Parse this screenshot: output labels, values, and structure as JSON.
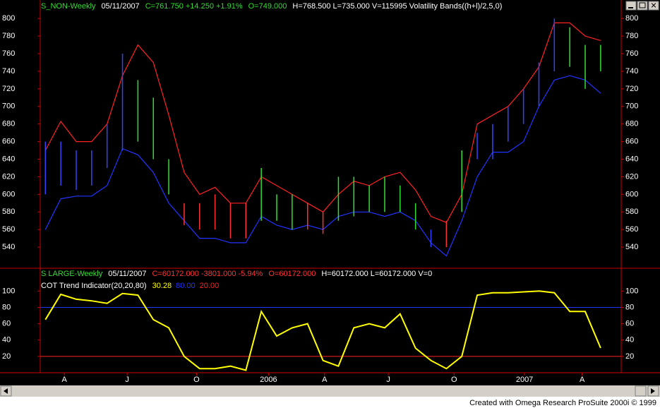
{
  "chart_data": [
    {
      "type": "ohlc",
      "legend": [
        {
          "text": "S_NON-Weekly",
          "color": "#33dd33"
        },
        {
          "text": "05/11/2007",
          "color": "#ffffff"
        },
        {
          "text": "C=761.750  +14.250  +1.91%",
          "color": "#33dd33"
        },
        {
          "text": "O=749.000",
          "color": "#33dd33"
        },
        {
          "text": "H=768.500  L=735.000  V=115995  Volatility Bands((h+l)/2,5,0)",
          "color": "#ffffff"
        }
      ],
      "x": [
        1,
        4,
        7,
        10,
        13,
        16,
        19,
        22,
        25,
        28,
        31,
        34,
        37,
        40,
        43,
        46,
        49,
        52,
        55,
        58,
        61,
        64,
        67,
        70,
        73,
        76,
        79,
        82,
        85,
        88,
        91,
        94,
        97,
        100,
        103,
        106,
        109
      ],
      "high": [
        660,
        660,
        650,
        650,
        680,
        760,
        730,
        710,
        640,
        590,
        590,
        600,
        590,
        590,
        630,
        600,
        600,
        590,
        580,
        620,
        620,
        610,
        620,
        610,
        590,
        560,
        570,
        650,
        670,
        680,
        700,
        720,
        750,
        800,
        790,
        770,
        770
      ],
      "low": [
        600,
        610,
        605,
        610,
        630,
        650,
        660,
        640,
        600,
        565,
        560,
        560,
        550,
        550,
        570,
        570,
        560,
        560,
        555,
        570,
        575,
        580,
        580,
        580,
        560,
        540,
        540,
        580,
        640,
        640,
        660,
        680,
        700,
        740,
        745,
        720,
        740
      ],
      "bar_colors": [
        "#3344ff",
        "#3344ff",
        "#3344ff",
        "#3344ff",
        "#3344ff",
        "#3344ff",
        "#33dd33",
        "#33dd33",
        "#33dd33",
        "#ff3333",
        "#ff3333",
        "#ff3333",
        "#ff3333",
        "#ff3333",
        "#33dd33",
        "#33dd33",
        "#33dd33",
        "#ff3333",
        "#ff3333",
        "#33dd33",
        "#33dd33",
        "#33dd33",
        "#33dd33",
        "#33dd33",
        "#33dd33",
        "#3344ff",
        "#ff3333",
        "#33dd33",
        "#3344ff",
        "#3344ff",
        "#3344ff",
        "#3344ff",
        "#3344ff",
        "#3344ff",
        "#33dd33",
        "#33dd33",
        "#33dd33"
      ],
      "lines": [
        {
          "color": "#ff2222",
          "values": [
            650,
            683,
            660,
            660,
            680,
            735,
            770,
            750,
            690,
            625,
            600,
            608,
            590,
            590,
            620,
            610,
            600,
            590,
            580,
            600,
            615,
            610,
            620,
            625,
            605,
            575,
            568,
            600,
            680,
            690,
            700,
            720,
            745,
            795,
            795,
            780,
            775
          ]
        },
        {
          "color": "#2233ff",
          "values": [
            560,
            595,
            598,
            598,
            610,
            652,
            645,
            625,
            590,
            570,
            550,
            550,
            545,
            545,
            575,
            565,
            560,
            565,
            560,
            575,
            580,
            580,
            575,
            580,
            570,
            545,
            530,
            570,
            620,
            648,
            648,
            660,
            700,
            730,
            735,
            730,
            715
          ]
        }
      ],
      "xlim": [
        0,
        113
      ],
      "ylim": [
        516,
        809
      ],
      "yticks": [
        540,
        560,
        580,
        600,
        620,
        640,
        660,
        680,
        700,
        720,
        740,
        760,
        780,
        800
      ]
    },
    {
      "type": "line",
      "legend": [
        {
          "text": "S LARGE-Weekly",
          "color": "#33dd33"
        },
        {
          "text": "05/11/2007",
          "color": "#ffffff"
        },
        {
          "text": "C=60172.000  -3801.000  -5.94%",
          "color": "#ff3333"
        },
        {
          "text": "O=60172.000",
          "color": "#ff3333"
        },
        {
          "text": "H=60172.000  L=60172.000  V=0",
          "color": "#ffffff"
        }
      ],
      "indicator": "COT Trend Indicator(20,20,80)",
      "x": [
        1,
        4,
        7,
        10,
        13,
        16,
        19,
        22,
        25,
        28,
        31,
        34,
        37,
        40,
        43,
        46,
        49,
        52,
        55,
        58,
        61,
        64,
        67,
        70,
        73,
        76,
        79,
        82,
        85,
        88,
        91,
        94,
        97,
        100,
        103,
        106,
        109
      ],
      "series": [
        {
          "color": "#ffff00",
          "values": [
            65,
            96,
            90,
            88,
            85,
            97,
            95,
            65,
            55,
            20,
            5,
            5,
            8,
            3,
            75,
            45,
            55,
            60,
            15,
            8,
            55,
            60,
            55,
            72,
            30,
            15,
            5,
            20,
            95,
            98,
            98,
            99,
            100,
            98,
            75,
            75,
            30.28
          ]
        }
      ],
      "levels": [
        {
          "value": 80,
          "label": "80.00",
          "color": "#2233ff"
        },
        {
          "value": 20,
          "label": "20.00",
          "color": "#ff2222"
        }
      ],
      "xlim": [
        0,
        113
      ],
      "ylim": [
        0,
        115
      ],
      "yticks": [
        20,
        40,
        60,
        80,
        100
      ],
      "xticks": [
        {
          "value": 4.7,
          "label": "A"
        },
        {
          "value": 16.9,
          "label": "J"
        },
        {
          "value": 30.4,
          "label": "O"
        },
        {
          "value": 44.4,
          "label": "2006"
        },
        {
          "value": 55.3,
          "label": "A"
        },
        {
          "value": 67.7,
          "label": "J"
        },
        {
          "value": 80.5,
          "label": "O"
        },
        {
          "value": 94.2,
          "label": "2007"
        },
        {
          "value": 105.4,
          "label": "A"
        }
      ]
    }
  ],
  "footer": "Created with Omega Research ProSuite 2000i © 1999"
}
